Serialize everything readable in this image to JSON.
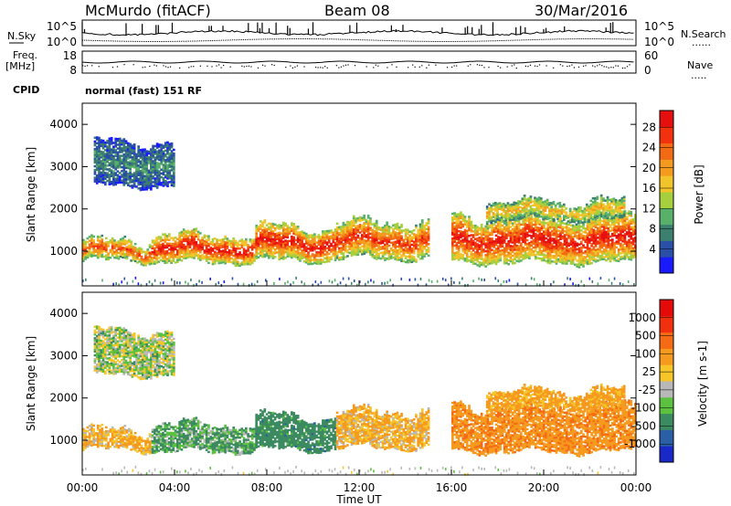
{
  "header": {
    "station": "McMurdo (fitACF)",
    "beam": "Beam 08",
    "date": "30/Mar/2016"
  },
  "side_labels": {
    "nsky": "N.Sky",
    "freq": "Freq.",
    "mhz": "[MHz]",
    "cpid": "CPID",
    "nsearch": "N.Search",
    "nave": "Nave",
    "dots": "......",
    "dots2": "....."
  },
  "top_axes": {
    "count_left_top": "10^5",
    "count_left_bottom": "10^0",
    "count_right_top": "10^5",
    "count_right_bottom": "10^0",
    "freq_top": "18",
    "freq_bottom": "8",
    "nave_top": "60",
    "nave_bottom": "0"
  },
  "cpid_text": "normal (fast) 151 RF",
  "chart_data": {
    "type": "heatmap",
    "x": {
      "label": "Time UT",
      "range_hours": [
        0,
        24
      ],
      "ticks": [
        "00:00",
        "04:00",
        "08:00",
        "12:00",
        "16:00",
        "20:00",
        "00:00"
      ]
    },
    "y": {
      "label": "Slant Range [km]",
      "range_km": [
        180,
        4500
      ],
      "ticks": [
        1000,
        2000,
        3000,
        4000
      ]
    },
    "panels": [
      {
        "quantity": "Power",
        "colorbar_label": "Power [dB]",
        "colorbar_ticks": [
          "4",
          "8",
          "12",
          "16",
          "20",
          "24",
          "28"
        ],
        "colorbar_range": [
          0,
          30
        ],
        "colorbar_colors": [
          "#1a1aff",
          "#2a4fa6",
          "#3d7f6f",
          "#58b06b",
          "#a6cf3e",
          "#f2c42b",
          "#f39a1f",
          "#f26a14",
          "#f2320f",
          "#e60f0f"
        ]
      },
      {
        "quantity": "Velocity",
        "colorbar_label": "Velocity [m s-1]",
        "colorbar_ticks": [
          "1000",
          "500",
          "100",
          "25",
          "-25",
          "-100",
          "-500",
          "-1000"
        ],
        "colorbar_colors": [
          "#1a28c8",
          "#2a5fa6",
          "#3c8a60",
          "#5cc040",
          "#b8b8b8",
          "#f5c52a",
          "#f59a1e",
          "#f56a14",
          "#f0300f",
          "#e50a0a"
        ]
      }
    ],
    "echo_bands": [
      {
        "t_start": 0.0,
        "t_end": 3.0,
        "r_min": 750,
        "r_max": 1150,
        "power_db": 24,
        "velocity": -100
      },
      {
        "t_start": 3.0,
        "t_end": 7.5,
        "r_min": 700,
        "r_max": 1300,
        "power_db": 27,
        "velocity": 100
      },
      {
        "t_start": 7.5,
        "t_end": 11.0,
        "r_min": 750,
        "r_max": 1500,
        "power_db": 27,
        "velocity": 200
      },
      {
        "t_start": 11.0,
        "t_end": 15.0,
        "r_min": 800,
        "r_max": 1600,
        "power_db": 25,
        "velocity": -100
      },
      {
        "t_start": 16.0,
        "t_end": 24.0,
        "r_min": 700,
        "r_max": 1700,
        "power_db": 27,
        "velocity": -250
      },
      {
        "t_start": 0.5,
        "t_end": 4.0,
        "r_min": 2500,
        "r_max": 3500,
        "power_db": 8,
        "velocity": 20
      },
      {
        "t_start": 17.5,
        "t_end": 23.5,
        "r_min": 1700,
        "r_max": 2100,
        "power_db": 18,
        "velocity": -150
      }
    ]
  }
}
